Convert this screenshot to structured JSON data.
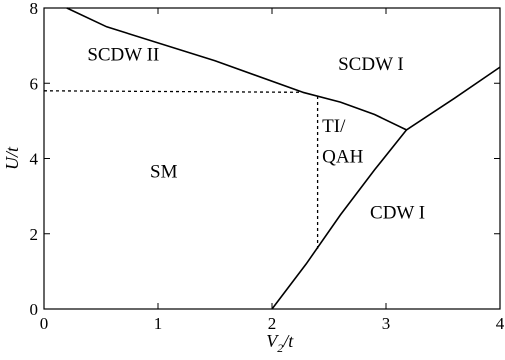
{
  "chart_data": {
    "type": "line",
    "xlabel": {
      "main": "V",
      "sub": "2",
      "suffix": "/t"
    },
    "ylabel": "U/t",
    "xlim": [
      0,
      4
    ],
    "ylim": [
      0,
      8
    ],
    "x_ticks": [
      "0",
      "1",
      "2",
      "3",
      "4"
    ],
    "y_ticks": [
      "0",
      "2",
      "4",
      "6",
      "8"
    ],
    "grid": false,
    "series": [
      {
        "style": "solid",
        "points": [
          [
            0.2,
            8.0
          ],
          [
            0.55,
            7.5
          ],
          [
            1.5,
            6.6
          ],
          [
            2.27,
            5.76
          ]
        ]
      },
      {
        "style": "solid",
        "points": [
          [
            2.27,
            5.76
          ],
          [
            2.6,
            5.5
          ],
          [
            2.9,
            5.17
          ],
          [
            3.18,
            4.76
          ],
          [
            3.6,
            5.6
          ],
          [
            4.0,
            6.43
          ]
        ]
      },
      {
        "style": "solid",
        "points": [
          [
            2.0,
            0.0
          ],
          [
            2.3,
            1.2
          ],
          [
            2.6,
            2.5
          ],
          [
            2.9,
            3.7
          ],
          [
            3.18,
            4.76
          ]
        ]
      },
      {
        "style": "dashed",
        "points": [
          [
            0.0,
            5.8
          ],
          [
            2.27,
            5.76
          ]
        ]
      },
      {
        "style": "dashed",
        "points": [
          [
            2.4,
            5.66
          ],
          [
            2.4,
            1.6
          ]
        ]
      }
    ],
    "region_labels": [
      {
        "text": "SCDW II",
        "x": 0.38,
        "y": 6.6
      },
      {
        "text": "SCDW I",
        "x": 2.58,
        "y": 6.35
      },
      {
        "text": "TI/",
        "x": 2.44,
        "y": 4.7
      },
      {
        "text": "QAH",
        "x": 2.44,
        "y": 3.9
      },
      {
        "text": "SM",
        "x": 0.93,
        "y": 3.5
      },
      {
        "text": "CDW I",
        "x": 2.86,
        "y": 2.4
      }
    ]
  }
}
